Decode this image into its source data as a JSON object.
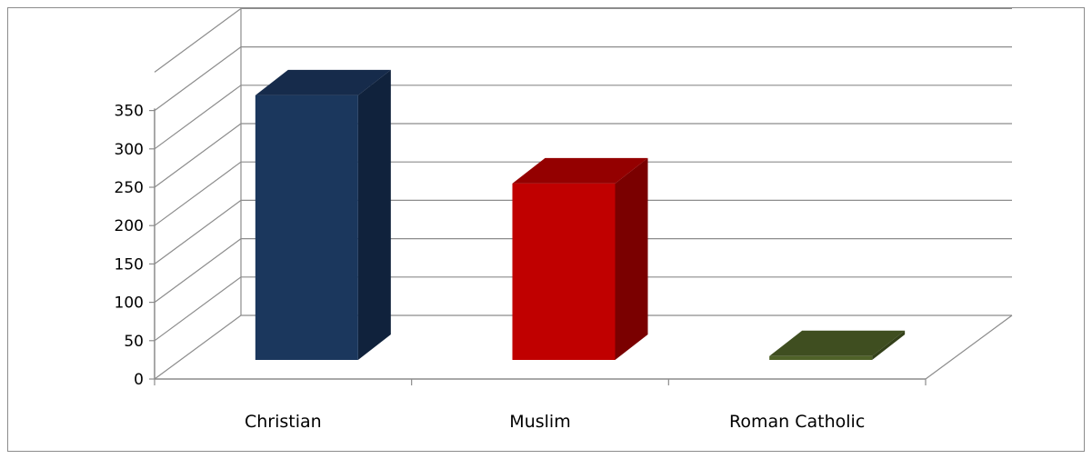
{
  "chart_data": {
    "type": "bar",
    "categories": [
      "Christian",
      "Muslim",
      "Roman Catholic"
    ],
    "values": [
      345,
      230,
      5
    ],
    "title": "",
    "xlabel": "",
    "ylabel": "",
    "ylim": [
      0,
      350
    ],
    "yticks": [
      0,
      50,
      100,
      150,
      200,
      250,
      300,
      350
    ],
    "grid": true,
    "legend": "none",
    "style": "3d-column",
    "colors": [
      {
        "front": "#1b375d",
        "top": "#162b4b",
        "side": "#10223c"
      },
      {
        "front": "#c00000",
        "top": "#940000",
        "side": "#7a0000"
      },
      {
        "front": "#4f6228",
        "top": "#3f4e20",
        "side": "#34411a"
      }
    ]
  }
}
